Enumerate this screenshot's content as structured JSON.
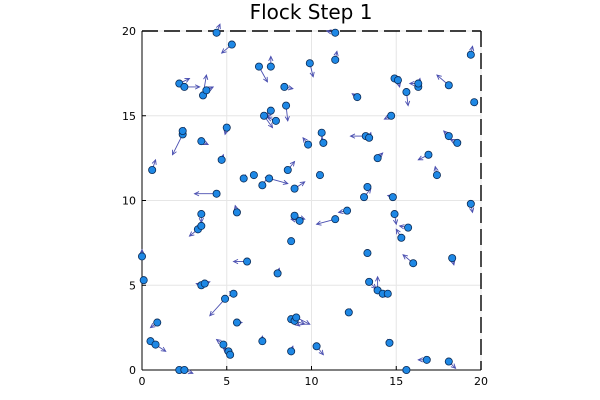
{
  "chart_data": {
    "type": "scatter",
    "title": "Flock Step 1",
    "xlabel": "",
    "ylabel": "",
    "xlim": [
      0,
      20
    ],
    "ylim": [
      0,
      20
    ],
    "xticks": [
      0,
      5,
      10,
      15,
      20
    ],
    "yticks": [
      0,
      5,
      10,
      15,
      20
    ],
    "xtick_labels": [
      "0",
      "5",
      "10",
      "15",
      "20"
    ],
    "ytick_labels": [
      "0",
      "5",
      "10",
      "15",
      "20"
    ],
    "grid": true,
    "border": "dashed",
    "legend": "none",
    "marker_color": "#1e88e5",
    "arrow_color": "#4a4fb0",
    "points": [
      {
        "x": 4.4,
        "y": 19.9,
        "vx": 0.2,
        "vy": 0.5
      },
      {
        "x": 5.3,
        "y": 19.2,
        "vx": -0.6,
        "vy": -0.5
      },
      {
        "x": 11.4,
        "y": 19.9,
        "vx": -0.5,
        "vy": 0.1
      },
      {
        "x": 19.4,
        "y": 18.6,
        "vx": 0.1,
        "vy": 0.5
      },
      {
        "x": 6.9,
        "y": 17.9,
        "vx": 0.5,
        "vy": -0.9
      },
      {
        "x": 7.6,
        "y": 17.9,
        "vx": 0.0,
        "vy": 0.6
      },
      {
        "x": 9.9,
        "y": 18.1,
        "vx": 0.2,
        "vy": -0.8
      },
      {
        "x": 11.4,
        "y": 18.3,
        "vx": 0.1,
        "vy": 0.5
      },
      {
        "x": 2.2,
        "y": 16.9,
        "vx": 0.6,
        "vy": 0.3
      },
      {
        "x": 2.5,
        "y": 16.7,
        "vx": 0.9,
        "vy": 0.0
      },
      {
        "x": 3.6,
        "y": 16.2,
        "vx": 0.2,
        "vy": 1.2
      },
      {
        "x": 3.8,
        "y": 16.5,
        "vx": 0.4,
        "vy": 0.2
      },
      {
        "x": 8.4,
        "y": 16.7,
        "vx": 0.5,
        "vy": -0.1
      },
      {
        "x": 12.7,
        "y": 16.1,
        "vx": -0.3,
        "vy": 0.2
      },
      {
        "x": 14.9,
        "y": 17.2,
        "vx": 0.3,
        "vy": 0.1
      },
      {
        "x": 15.1,
        "y": 17.1,
        "vx": 0.1,
        "vy": -0.4
      },
      {
        "x": 16.3,
        "y": 16.7,
        "vx": 0.1,
        "vy": 0.5
      },
      {
        "x": 16.3,
        "y": 16.9,
        "vx": -0.5,
        "vy": 0.0
      },
      {
        "x": 15.6,
        "y": 16.4,
        "vx": 0.1,
        "vy": -0.8
      },
      {
        "x": 18.1,
        "y": 16.8,
        "vx": -0.7,
        "vy": 0.6
      },
      {
        "x": 19.6,
        "y": 15.8,
        "vx": 0.1,
        "vy": -0.2
      },
      {
        "x": 7.2,
        "y": 15.0,
        "vx": 0.5,
        "vy": -0.7
      },
      {
        "x": 7.6,
        "y": 15.3,
        "vx": -0.2,
        "vy": -0.4
      },
      {
        "x": 7.9,
        "y": 14.7,
        "vx": -0.5,
        "vy": 0.2
      },
      {
        "x": 8.5,
        "y": 15.6,
        "vx": 0.1,
        "vy": -0.9
      },
      {
        "x": 14.7,
        "y": 15.0,
        "vx": -0.4,
        "vy": -0.2
      },
      {
        "x": 2.4,
        "y": 13.9,
        "vx": -0.6,
        "vy": -1.2
      },
      {
        "x": 2.4,
        "y": 14.1,
        "vx": 0.1,
        "vy": 0.2
      },
      {
        "x": 5.0,
        "y": 14.3,
        "vx": -0.1,
        "vy": -0.4
      },
      {
        "x": 9.8,
        "y": 13.3,
        "vx": -0.3,
        "vy": 0.4
      },
      {
        "x": 10.6,
        "y": 14.0,
        "vx": 0.1,
        "vy": -0.8
      },
      {
        "x": 10.7,
        "y": 13.4,
        "vx": -0.1,
        "vy": 0.3
      },
      {
        "x": 13.2,
        "y": 13.8,
        "vx": -0.9,
        "vy": 0.0
      },
      {
        "x": 13.4,
        "y": 13.7,
        "vx": 0.1,
        "vy": 0.3
      },
      {
        "x": 18.1,
        "y": 13.8,
        "vx": -0.3,
        "vy": 0.3
      },
      {
        "x": 18.6,
        "y": 13.4,
        "vx": -0.4,
        "vy": 0.2
      },
      {
        "x": 3.5,
        "y": 13.5,
        "vx": 0.4,
        "vy": -0.2
      },
      {
        "x": 13.9,
        "y": 12.5,
        "vx": 0.3,
        "vy": 0.3
      },
      {
        "x": 16.9,
        "y": 12.7,
        "vx": -0.6,
        "vy": -0.3
      },
      {
        "x": 0.6,
        "y": 11.8,
        "vx": 0.2,
        "vy": 0.6
      },
      {
        "x": 4.7,
        "y": 12.4,
        "vx": 0.1,
        "vy": 0.3
      },
      {
        "x": 6.0,
        "y": 11.3,
        "vx": 0.1,
        "vy": 0.2
      },
      {
        "x": 6.6,
        "y": 11.5,
        "vx": 0.0,
        "vy": 0.1
      },
      {
        "x": 7.1,
        "y": 10.9,
        "vx": 0.4,
        "vy": 0.6
      },
      {
        "x": 7.5,
        "y": 11.3,
        "vx": 1.1,
        "vy": -0.3
      },
      {
        "x": 8.6,
        "y": 11.8,
        "vx": 0.4,
        "vy": 0.5
      },
      {
        "x": 9.0,
        "y": 10.7,
        "vx": 0.6,
        "vy": 0.4
      },
      {
        "x": 10.5,
        "y": 11.5,
        "vx": -0.1,
        "vy": 0.2
      },
      {
        "x": 13.3,
        "y": 10.8,
        "vx": 0.0,
        "vy": -0.2
      },
      {
        "x": 17.4,
        "y": 11.5,
        "vx": -0.1,
        "vy": 0.5
      },
      {
        "x": 4.4,
        "y": 10.4,
        "vx": -1.3,
        "vy": 0.0
      },
      {
        "x": 13.1,
        "y": 10.2,
        "vx": 0.4,
        "vy": 0.5
      },
      {
        "x": 14.8,
        "y": 10.2,
        "vx": -0.3,
        "vy": 0.1
      },
      {
        "x": 19.4,
        "y": 9.8,
        "vx": 0.1,
        "vy": -0.5
      },
      {
        "x": 5.6,
        "y": 9.3,
        "vx": -0.1,
        "vy": 0.4
      },
      {
        "x": 3.5,
        "y": 9.2,
        "vx": 0.0,
        "vy": -0.5
      },
      {
        "x": 9.0,
        "y": 9.1,
        "vx": 0.6,
        "vy": -0.2
      },
      {
        "x": 9.3,
        "y": 8.8,
        "vx": -0.5,
        "vy": 0.1
      },
      {
        "x": 11.4,
        "y": 8.9,
        "vx": -1.1,
        "vy": -0.3
      },
      {
        "x": 12.1,
        "y": 9.4,
        "vx": -0.5,
        "vy": -0.1
      },
      {
        "x": 14.9,
        "y": 9.2,
        "vx": 0.1,
        "vy": -0.6
      },
      {
        "x": 3.3,
        "y": 8.3,
        "vx": -0.5,
        "vy": -0.4
      },
      {
        "x": 3.5,
        "y": 8.5,
        "vx": -0.4,
        "vy": -0.2
      },
      {
        "x": 15.7,
        "y": 8.4,
        "vx": -0.5,
        "vy": 0.1
      },
      {
        "x": 15.3,
        "y": 7.8,
        "vx": -0.3,
        "vy": 0.5
      },
      {
        "x": 8.8,
        "y": 7.6,
        "vx": -0.1,
        "vy": -0.1
      },
      {
        "x": 13.3,
        "y": 6.9,
        "vx": -0.1,
        "vy": 0.1
      },
      {
        "x": 0.0,
        "y": 6.7,
        "vx": 0.0,
        "vy": 0.4
      },
      {
        "x": 6.2,
        "y": 6.4,
        "vx": -0.8,
        "vy": 0.0
      },
      {
        "x": 16.0,
        "y": 6.3,
        "vx": -0.6,
        "vy": 0.5
      },
      {
        "x": 18.3,
        "y": 6.6,
        "vx": 0.1,
        "vy": -0.4
      },
      {
        "x": 8.0,
        "y": 5.7,
        "vx": 0.1,
        "vy": 0.3
      },
      {
        "x": 0.1,
        "y": 5.3,
        "vx": 0.1,
        "vy": 0.0
      },
      {
        "x": 3.5,
        "y": 5.0,
        "vx": -0.3,
        "vy": 0.1
      },
      {
        "x": 3.7,
        "y": 5.1,
        "vx": 0.3,
        "vy": 0.1
      },
      {
        "x": 13.4,
        "y": 5.2,
        "vx": 0.4,
        "vy": -0.4
      },
      {
        "x": 13.9,
        "y": 4.7,
        "vx": 0.0,
        "vy": 0.8
      },
      {
        "x": 14.2,
        "y": 4.5,
        "vx": -0.4,
        "vy": 0.3
      },
      {
        "x": 14.5,
        "y": 4.5,
        "vx": -0.3,
        "vy": -0.2
      },
      {
        "x": 4.9,
        "y": 4.2,
        "vx": -0.9,
        "vy": -1.0
      },
      {
        "x": 5.4,
        "y": 4.5,
        "vx": 0.0,
        "vy": 0.0
      },
      {
        "x": 12.2,
        "y": 3.4,
        "vx": 0.1,
        "vy": 0.2
      },
      {
        "x": 0.9,
        "y": 2.8,
        "vx": -0.4,
        "vy": -0.3
      },
      {
        "x": 5.6,
        "y": 2.8,
        "vx": 0.3,
        "vy": 0.0
      },
      {
        "x": 8.8,
        "y": 3.0,
        "vx": 0.5,
        "vy": -0.4
      },
      {
        "x": 9.0,
        "y": 2.9,
        "vx": 0.6,
        "vy": -0.2
      },
      {
        "x": 9.1,
        "y": 3.1,
        "vx": 0.8,
        "vy": -0.4
      },
      {
        "x": 0.5,
        "y": 1.7,
        "vx": 0.2,
        "vy": -0.3
      },
      {
        "x": 0.8,
        "y": 1.5,
        "vx": 0.6,
        "vy": -0.4
      },
      {
        "x": 4.8,
        "y": 1.5,
        "vx": -0.4,
        "vy": 0.3
      },
      {
        "x": 5.1,
        "y": 1.1,
        "vx": -0.2,
        "vy": 0.2
      },
      {
        "x": 5.2,
        "y": 0.9,
        "vx": -0.4,
        "vy": 0.4
      },
      {
        "x": 7.1,
        "y": 1.7,
        "vx": 0.0,
        "vy": 0.3
      },
      {
        "x": 8.8,
        "y": 1.1,
        "vx": 0.1,
        "vy": 0.3
      },
      {
        "x": 10.3,
        "y": 1.4,
        "vx": 0.4,
        "vy": -0.5
      },
      {
        "x": 14.6,
        "y": 1.6,
        "vx": -0.1,
        "vy": 0.2
      },
      {
        "x": 16.8,
        "y": 0.6,
        "vx": -0.5,
        "vy": 0.0
      },
      {
        "x": 18.1,
        "y": 0.5,
        "vx": 0.4,
        "vy": -0.4
      },
      {
        "x": 2.2,
        "y": 0.0,
        "vx": 0.2,
        "vy": 0.1
      },
      {
        "x": 2.5,
        "y": 0.0,
        "vx": 0.5,
        "vy": -0.2
      },
      {
        "x": 15.6,
        "y": 0.0,
        "vx": -0.2,
        "vy": -0.1
      }
    ]
  }
}
